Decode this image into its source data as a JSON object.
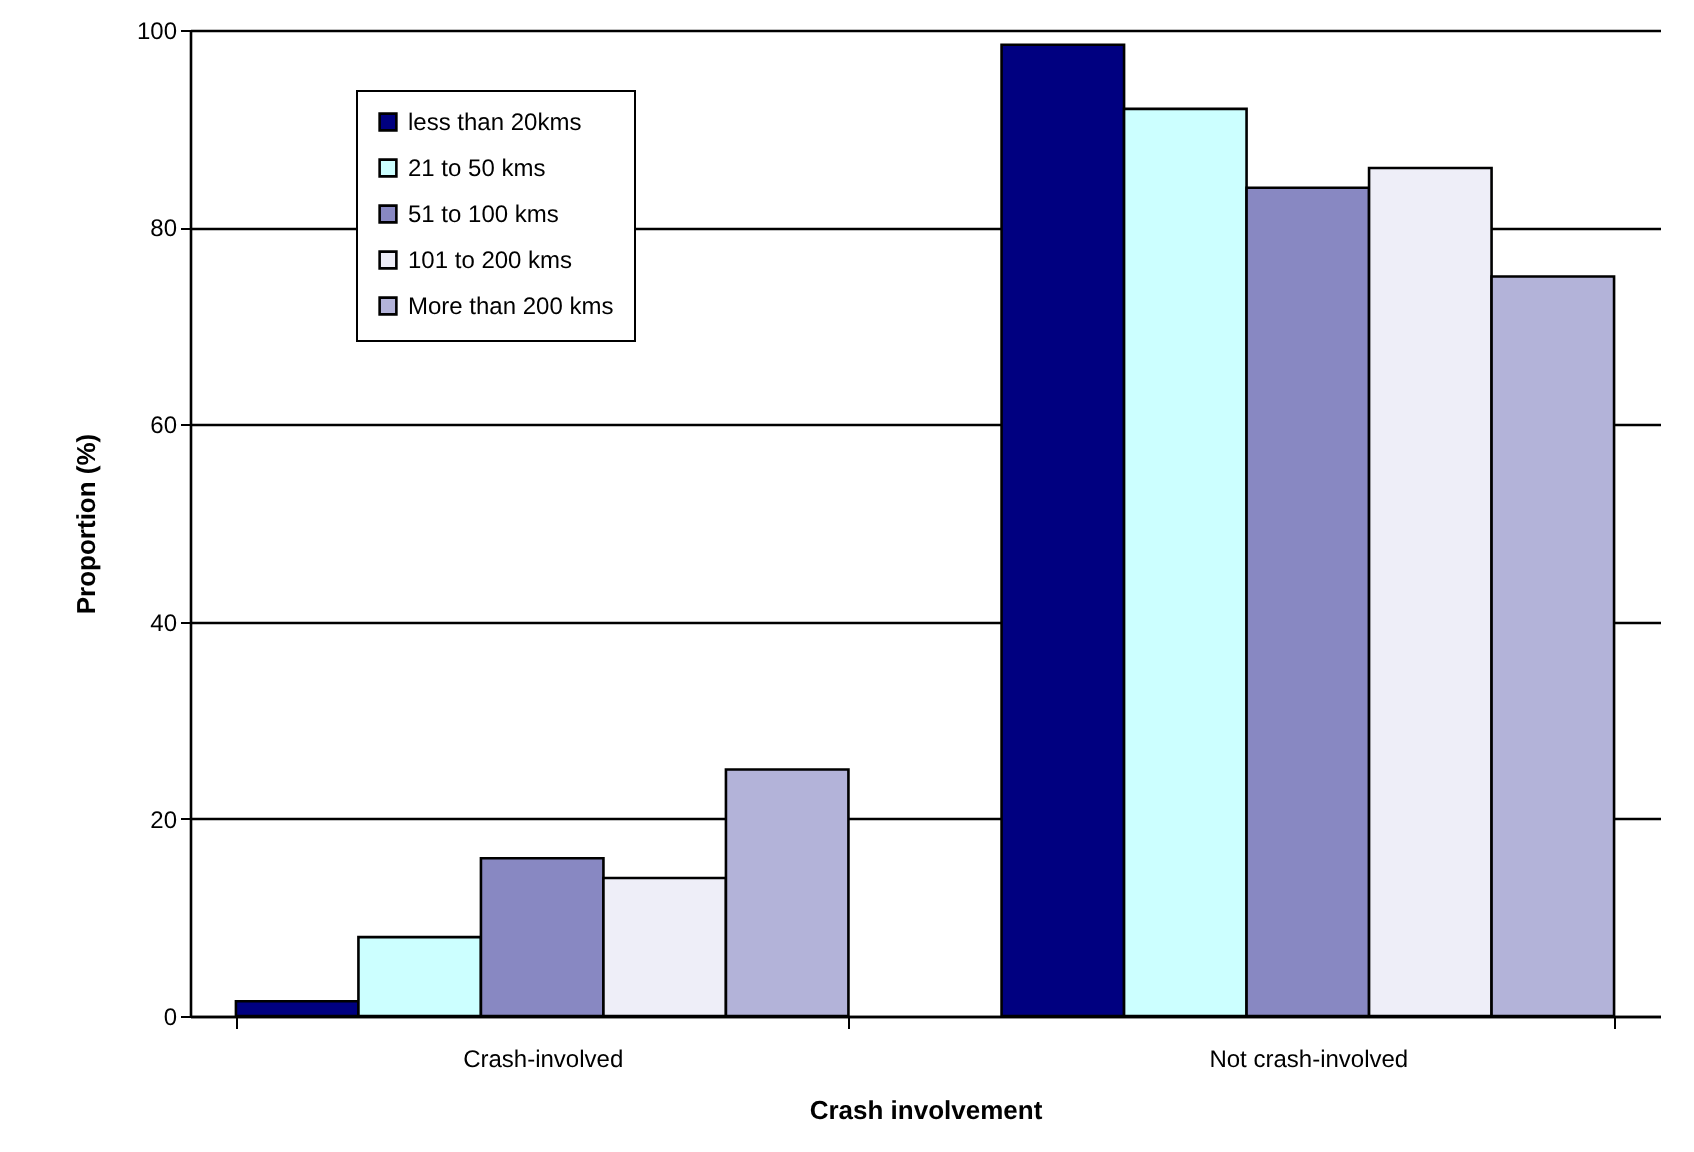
{
  "chart_data": {
    "type": "bar",
    "xlabel": "Crash involvement",
    "ylabel": "Proportion (%)",
    "categories": [
      "Crash-involved",
      "Not crash-involved"
    ],
    "series": [
      {
        "name": "less than 20kms",
        "color": "#000080",
        "values": [
          1.5,
          98.5
        ]
      },
      {
        "name": "21 to 50 kms",
        "color": "#ccffff",
        "values": [
          8,
          92
        ]
      },
      {
        "name": "51 to 100 kms",
        "color": "#8888c2",
        "values": [
          16,
          84
        ]
      },
      {
        "name": "101 to 200 kms",
        "color": "#eeeef8",
        "values": [
          14,
          86
        ]
      },
      {
        "name": "More than 200 kms",
        "color": "#b3b3d9",
        "values": [
          25,
          75
        ]
      }
    ],
    "ylim": [
      0,
      100
    ],
    "yticks": [
      0,
      20,
      40,
      60,
      80,
      100
    ],
    "grid": "y",
    "legend": "top left"
  }
}
